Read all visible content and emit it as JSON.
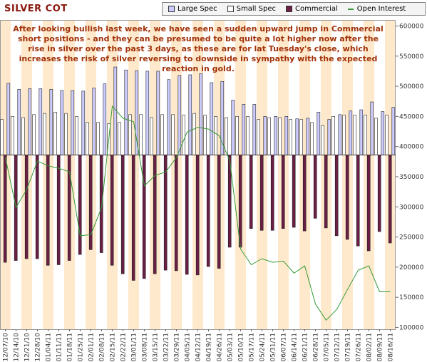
{
  "chart_data": {
    "type": "bar",
    "title": "SILVER COT",
    "annotation": "After looking bullish last week, we have seen a sudden upward jump in Commercial short positions - and they can be presumed to be quite a lot higher now after the rise in silver over the past 3 days, as these are for lat Tuesday's close, which increases the risk of silver reversing to downside in sympathy with the expected reaction in gold.",
    "categories": [
      "12/07/10",
      "12/14/10",
      "12/21/10",
      "12/28/10",
      "01/04/11",
      "01/11/11",
      "01/18/11",
      "01/25/11",
      "02/01/11",
      "02/08/11",
      "02/15/11",
      "02/22/11",
      "03/01/11",
      "03/08/11",
      "03/15/11",
      "03/22/11",
      "03/29/11",
      "04/05/11",
      "04/12/11",
      "04/19/11",
      "04/26/11",
      "05/03/11",
      "05/10/11",
      "05/17/11",
      "05/24/11",
      "05/31/11",
      "06/07/11",
      "06/14/11",
      "06/21/11",
      "06/28/11",
      "07/05/11",
      "07/12/11",
      "07/19/11",
      "07/26/11",
      "08/02/11",
      "08/09/11",
      "08/16/11"
    ],
    "bar_base": 386000,
    "series": [
      {
        "name": "Large Spec",
        "type": "bar",
        "color": "#ccccff",
        "values": [
          505000,
          495000,
          496000,
          496000,
          495000,
          493000,
          493000,
          492000,
          497000,
          504000,
          532000,
          527000,
          526000,
          525000,
          525000,
          511000,
          518000,
          519000,
          521000,
          506000,
          508000,
          477000,
          470000,
          470000,
          450000,
          450000,
          450000,
          446000,
          447000,
          457000,
          445000,
          453000,
          459000,
          461000,
          474000,
          458000,
          465000
        ]
      },
      {
        "name": "Small Spec",
        "type": "bar",
        "color": "#ffffff",
        "values": [
          445000,
          450000,
          448000,
          453000,
          455000,
          457000,
          455000,
          450000,
          440000,
          440000,
          438000,
          440000,
          453000,
          453000,
          448000,
          453000,
          453000,
          452000,
          455000,
          452000,
          450000,
          448000,
          450000,
          450000,
          445000,
          448000,
          448000,
          445000,
          445000,
          440000,
          435000,
          450000,
          452000,
          452000,
          452000,
          447000,
          452000
        ]
      },
      {
        "name": "Commercial",
        "type": "bar",
        "color": "#6b1f45",
        "values": [
          208000,
          211000,
          214000,
          214000,
          203000,
          204000,
          211000,
          221000,
          229000,
          224000,
          203000,
          189000,
          178000,
          181000,
          189000,
          195000,
          194000,
          188000,
          187000,
          201000,
          198000,
          233000,
          233000,
          264000,
          261000,
          261000,
          264000,
          266000,
          260000,
          281000,
          265000,
          252000,
          246000,
          235000,
          227000,
          259000,
          240000
        ]
      },
      {
        "name": "Open Interest",
        "type": "line",
        "color": "#339933",
        "values": [
          382000,
          299000,
          329000,
          376000,
          368000,
          364000,
          358000,
          252000,
          254000,
          299000,
          467000,
          447000,
          441000,
          335000,
          352000,
          358000,
          382000,
          424000,
          432000,
          429000,
          418000,
          376000,
          230000,
          204000,
          214000,
          208000,
          210000,
          190000,
          202000,
          139000,
          112000,
          130000,
          163000,
          195000,
          202000,
          159000,
          159000
        ]
      }
    ],
    "ylim": [
      97000,
      610000
    ],
    "yticks": [
      100000,
      150000,
      200000,
      250000,
      300000,
      350000,
      400000,
      450000,
      500000,
      550000,
      600000
    ],
    "yaxis_side": "right",
    "legend": "top",
    "stripe_color": "#ffe9cc"
  }
}
